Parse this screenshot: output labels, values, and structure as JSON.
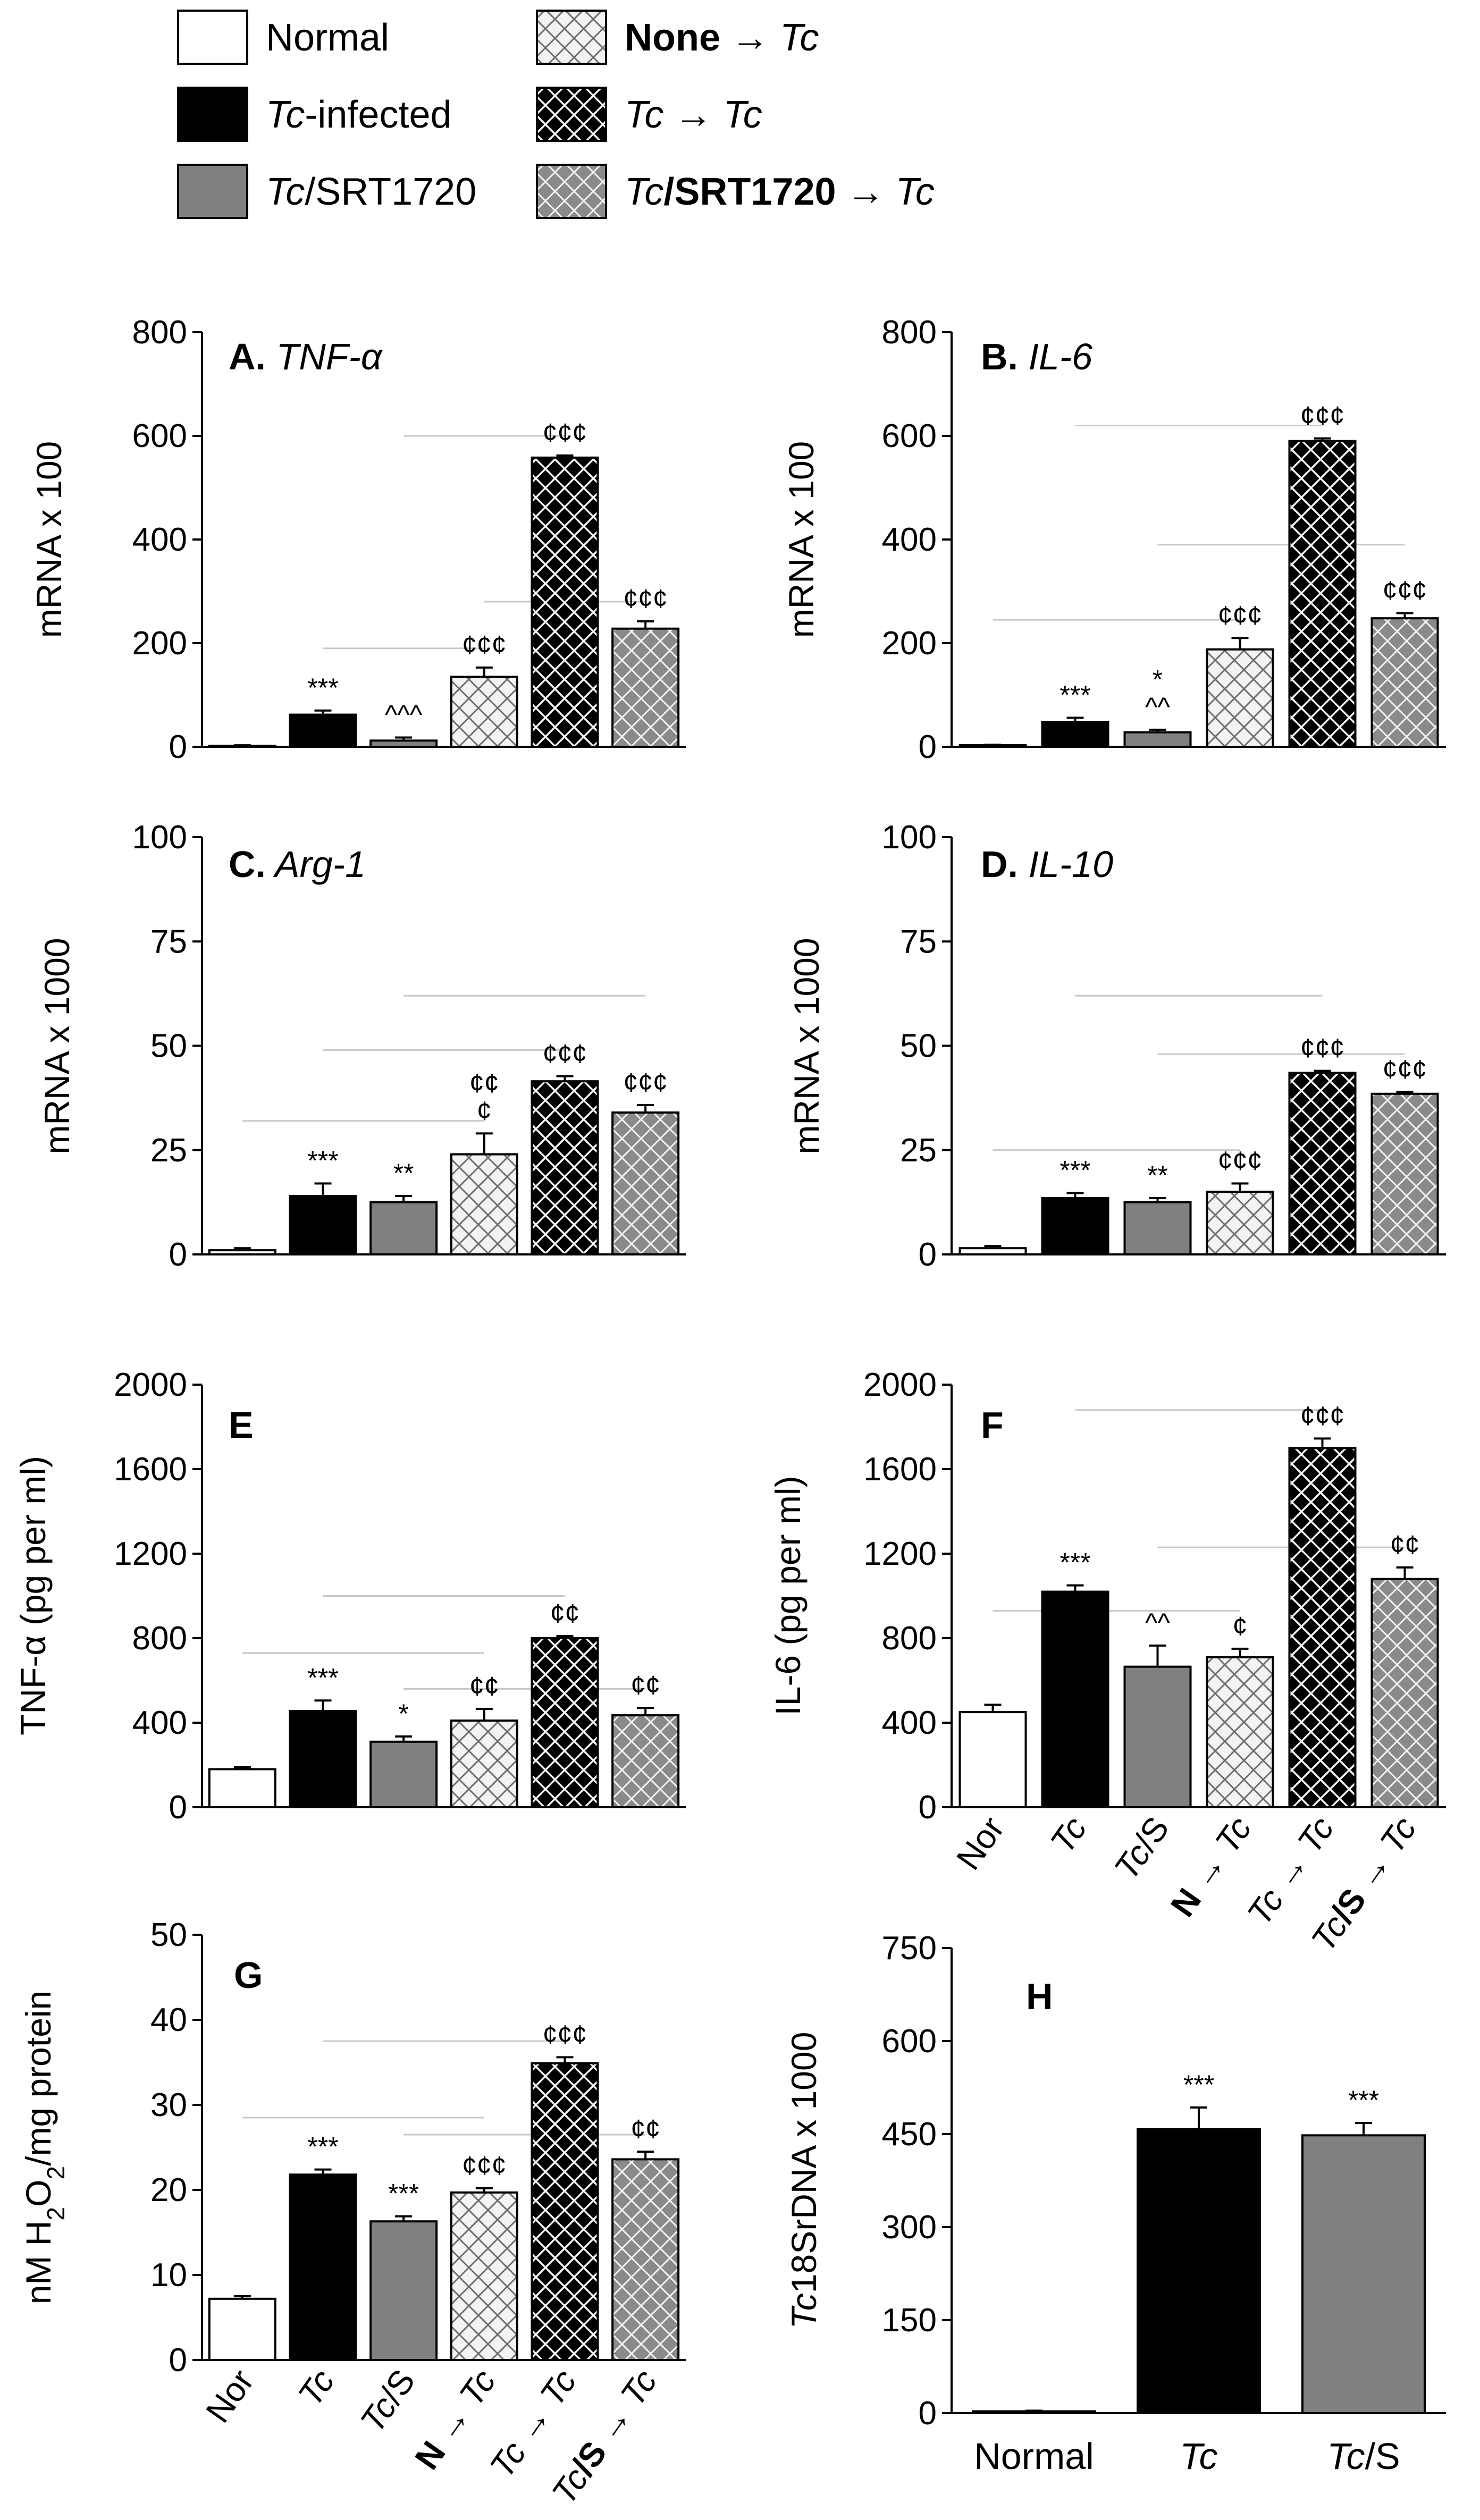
{
  "legend": [
    {
      "key": "normal",
      "label": "Normal"
    },
    {
      "key": "infected",
      "label": "Tc-infected"
    },
    {
      "key": "srt",
      "label": "Tc/SRT1720"
    },
    {
      "key": "none_tc",
      "label": "None → Tc"
    },
    {
      "key": "tc_tc",
      "label": "Tc → Tc"
    },
    {
      "key": "srt_tc",
      "label": "Tc/SRT1720 → Tc"
    }
  ],
  "styles": {
    "normal": {
      "fill": "#ffffff"
    },
    "infected": {
      "fill": "#000000"
    },
    "srt": {
      "fill": "#808080"
    },
    "none_tc": {
      "fill": "#f2f2f2",
      "pattern": "light-diamond"
    },
    "tc_tc": {
      "fill": "#000000",
      "pattern": "dark-diamond"
    },
    "srt_tc": {
      "fill": "#8a8a8a",
      "pattern": "gray-diamond"
    }
  },
  "x_categories": [
    "Nor",
    "Tc",
    "Tc/S",
    "N → Tc",
    "Tc → Tc",
    "Tc/S → Tc"
  ],
  "chart_data": [
    {
      "id": "A",
      "type": "bar",
      "title": "A. TNF-α",
      "ylabel": "mRNA x 100",
      "ylim": [
        0,
        800
      ],
      "yticks": [
        0,
        200,
        400,
        600,
        800
      ],
      "categories": [
        "Nor",
        "Tc",
        "Tc/S",
        "N → Tc",
        "Tc → Tc",
        "Tc/S → Tc"
      ],
      "values": [
        2,
        62,
        12,
        135,
        558,
        228
      ],
      "errors": [
        1,
        8,
        6,
        18,
        4,
        14
      ],
      "annotations": [
        "",
        "***",
        "^^^",
        "¢¢¢",
        "¢¢¢",
        "¢¢¢"
      ],
      "brackets": [
        [
          1,
          3,
          190
        ],
        [
          2,
          4,
          600
        ],
        [
          3,
          5,
          280
        ]
      ]
    },
    {
      "id": "B",
      "type": "bar",
      "title": "B. IL-6",
      "ylabel": "mRNA x 100",
      "ylim": [
        0,
        800
      ],
      "yticks": [
        0,
        200,
        400,
        600,
        800
      ],
      "categories": [
        "Nor",
        "Tc",
        "Tc/S",
        "N → Tc",
        "Tc → Tc",
        "Tc/S → Tc"
      ],
      "values": [
        3,
        48,
        28,
        188,
        590,
        248
      ],
      "errors": [
        1,
        8,
        5,
        22,
        5,
        10
      ],
      "annotations": [
        "",
        "***",
        "*\n^^",
        "¢¢¢",
        "¢¢¢",
        "¢¢¢"
      ],
      "brackets": [
        [
          0,
          3,
          245
        ],
        [
          1,
          4,
          620
        ],
        [
          2,
          5,
          390
        ]
      ]
    },
    {
      "id": "C",
      "type": "bar",
      "title": "C. Arg-1",
      "ylabel": "mRNA x 1000",
      "ylim": [
        0,
        100
      ],
      "yticks": [
        0,
        25,
        50,
        75,
        100
      ],
      "categories": [
        "Nor",
        "Tc",
        "Tc/S",
        "N → Tc",
        "Tc → Tc",
        "Tc/S → Tc"
      ],
      "values": [
        1,
        14,
        12.5,
        24,
        41.5,
        34
      ],
      "errors": [
        0.5,
        3,
        1.5,
        5,
        1.2,
        1.8
      ],
      "annotations": [
        "",
        "***",
        "**",
        "¢¢\n¢",
        "¢¢¢",
        "¢¢¢"
      ],
      "brackets": [
        [
          0,
          3,
          32
        ],
        [
          1,
          4,
          49
        ],
        [
          2,
          5,
          62
        ]
      ]
    },
    {
      "id": "D",
      "type": "bar",
      "title": "D. IL-10",
      "ylabel": "mRNA x 1000",
      "ylim": [
        0,
        100
      ],
      "yticks": [
        0,
        25,
        50,
        75,
        100
      ],
      "categories": [
        "Nor",
        "Tc",
        "Tc/S",
        "N → Tc",
        "Tc → Tc",
        "Tc/S → Tc"
      ],
      "values": [
        1.5,
        13.5,
        12.5,
        15,
        43.5,
        38.5
      ],
      "errors": [
        0.5,
        1.2,
        1,
        2,
        0.5,
        0.4
      ],
      "annotations": [
        "",
        "***",
        "**",
        "¢¢¢",
        "¢¢¢",
        "¢¢¢"
      ],
      "brackets": [
        [
          0,
          3,
          25
        ],
        [
          1,
          4,
          62
        ],
        [
          2,
          5,
          48
        ]
      ]
    },
    {
      "id": "E",
      "type": "bar",
      "title": "E",
      "ylabel": "TNF-α (pg per ml)",
      "ylim": [
        0,
        2000
      ],
      "yticks": [
        0,
        400,
        800,
        1200,
        1600,
        2000
      ],
      "categories": [
        "Nor",
        "Tc",
        "Tc/S",
        "N → Tc",
        "Tc → Tc",
        "Tc/S → Tc"
      ],
      "values": [
        180,
        455,
        310,
        410,
        800,
        435
      ],
      "errors": [
        10,
        50,
        25,
        55,
        10,
        35
      ],
      "annotations": [
        "",
        "***",
        "*",
        "¢¢",
        "¢¢",
        "¢¢"
      ],
      "brackets": [
        [
          0,
          3,
          730
        ],
        [
          1,
          4,
          1000
        ],
        [
          2,
          5,
          560
        ]
      ]
    },
    {
      "id": "F",
      "type": "bar",
      "title": "F",
      "ylabel": "IL-6 (pg per ml)",
      "ylim": [
        0,
        2000
      ],
      "yticks": [
        0,
        400,
        800,
        1200,
        1600,
        2000
      ],
      "categories": [
        "Nor",
        "Tc",
        "Tc/S",
        "N → Tc",
        "Tc → Tc",
        "Tc/S → Tc"
      ],
      "values": [
        450,
        1020,
        665,
        710,
        1700,
        1080
      ],
      "errors": [
        35,
        30,
        100,
        40,
        45,
        55
      ],
      "annotations": [
        "",
        "***",
        "^^",
        "¢",
        "¢¢¢",
        "¢¢"
      ],
      "brackets": [
        [
          0,
          3,
          930
        ],
        [
          1,
          4,
          1880
        ],
        [
          2,
          5,
          1230
        ]
      ]
    },
    {
      "id": "G",
      "type": "bar",
      "title": "G",
      "ylabel": "nM H2O2/mg protein",
      "ylim": [
        0,
        50
      ],
      "yticks": [
        0,
        10,
        20,
        30,
        40,
        50
      ],
      "categories": [
        "Nor",
        "Tc",
        "Tc/S",
        "N → Tc",
        "Tc → Tc",
        "Tc/S → Tc"
      ],
      "values": [
        7.2,
        21.8,
        16.3,
        19.7,
        34.9,
        23.6
      ],
      "errors": [
        0.3,
        0.6,
        0.6,
        0.5,
        0.7,
        0.9
      ],
      "annotations": [
        "",
        "***",
        "***",
        "¢¢¢",
        "¢¢¢",
        "¢¢"
      ],
      "brackets": [
        [
          0,
          3,
          28.5
        ],
        [
          1,
          4,
          37.5
        ],
        [
          2,
          5,
          26.5
        ]
      ]
    },
    {
      "id": "H",
      "type": "bar",
      "title": "H",
      "ylabel": "Tc18SrDNA x 1000",
      "ylim": [
        0,
        750
      ],
      "yticks": [
        0,
        150,
        300,
        450,
        600,
        750
      ],
      "categories": [
        "Normal",
        "Tc",
        "Tc/S"
      ],
      "values": [
        3,
        458,
        448
      ],
      "errors": [
        1,
        35,
        20
      ],
      "annotations": [
        "",
        "***",
        "***"
      ]
    }
  ]
}
